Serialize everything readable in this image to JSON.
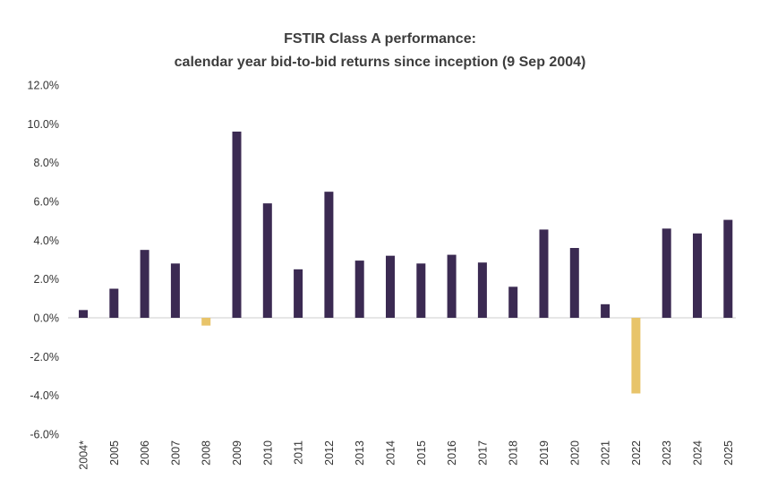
{
  "chart_data": {
    "type": "bar",
    "title_line1": "FSTIR Class A performance:",
    "title_line2": "calendar year bid-to-bid returns since inception (9 Sep 2004)",
    "xlabel": "",
    "ylabel": "",
    "ylim": [
      -6.0,
      12.0
    ],
    "ytick_values": [
      12,
      10,
      8,
      6,
      4,
      2,
      0,
      -2,
      -4,
      -6
    ],
    "ytick_labels": [
      "12.0%",
      "10.0%",
      "8.0%",
      "6.0%",
      "4.0%",
      "2.0%",
      "0.0%",
      "-2.0%",
      "-4.0%",
      "-6.0%"
    ],
    "categories": [
      "2004*",
      "2005",
      "2006",
      "2007",
      "2008",
      "2009",
      "2010",
      "2011",
      "2012",
      "2013",
      "2014",
      "2015",
      "2016",
      "2017",
      "2018",
      "2019",
      "2020",
      "2021",
      "2022",
      "2023",
      "2024",
      "2025"
    ],
    "values": [
      0.4,
      1.5,
      3.5,
      2.8,
      -0.4,
      9.6,
      5.9,
      2.5,
      6.5,
      2.95,
      3.2,
      2.8,
      3.25,
      2.85,
      1.6,
      4.55,
      3.6,
      0.7,
      -3.9,
      4.6,
      4.35,
      5.05
    ],
    "colors": {
      "positive": "#3b2a52",
      "negative": "#e8c46a",
      "axis": "#cccccc"
    }
  }
}
